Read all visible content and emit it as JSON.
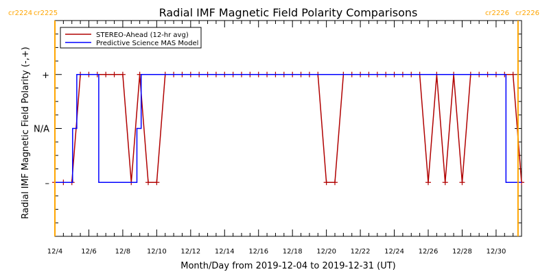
{
  "chart_data": {
    "type": "line",
    "title": "Radial IMF Magnetic Field Polarity Comparisons",
    "xlabel": "Month/Day from 2019-12-04 to 2019-12-31 (UT)",
    "ylabel": "Radial IMF Magnetic Field Polarity (-,+)",
    "x_ticks": [
      "12/4",
      "12/6",
      "12/8",
      "12/10",
      "12/12",
      "12/14",
      "12/16",
      "12/18",
      "12/20",
      "12/22",
      "12/24",
      "12/26",
      "12/28",
      "12/30"
    ],
    "y_ticks": [
      "+",
      "N/A",
      "–"
    ],
    "y_tick_values": [
      1,
      0,
      -1
    ],
    "xlim": [
      "2019-12-04",
      "2019-12-31T12:00"
    ],
    "ylim": [
      -2,
      2
    ],
    "carrington": {
      "left_labels": [
        "cr2224",
        "cr2225"
      ],
      "right_labels": [
        "cr2226",
        "cr2226"
      ],
      "boundaries": [
        "2019-12-04",
        "2019-12-31T07:00"
      ],
      "color": "#ffa500"
    },
    "legend": {
      "position": "top-left"
    },
    "series": [
      {
        "name": "STEREO-Ahead (12-hr avg)",
        "color": "#b00000",
        "markers": "plus",
        "x": [
          "2019-12-04",
          "2019-12-04T12:00",
          "2019-12-05",
          "2019-12-05T12:00",
          "2019-12-06",
          "2019-12-06T12:00",
          "2019-12-07",
          "2019-12-07T12:00",
          "2019-12-08",
          "2019-12-08T12:00",
          "2019-12-09",
          "2019-12-09T12:00",
          "2019-12-10",
          "2019-12-10T12:00",
          "2019-12-11",
          "2019-12-11T12:00",
          "2019-12-12",
          "2019-12-12T12:00",
          "2019-12-13",
          "2019-12-13T12:00",
          "2019-12-14",
          "2019-12-14T12:00",
          "2019-12-15",
          "2019-12-15T12:00",
          "2019-12-16",
          "2019-12-16T12:00",
          "2019-12-17",
          "2019-12-17T12:00",
          "2019-12-18",
          "2019-12-18T12:00",
          "2019-12-19",
          "2019-12-19T12:00",
          "2019-12-20",
          "2019-12-20T12:00",
          "2019-12-21",
          "2019-12-21T12:00",
          "2019-12-22",
          "2019-12-22T12:00",
          "2019-12-23",
          "2019-12-23T12:00",
          "2019-12-24",
          "2019-12-24T12:00",
          "2019-12-25",
          "2019-12-25T12:00",
          "2019-12-26",
          "2019-12-26T12:00",
          "2019-12-27",
          "2019-12-27T12:00",
          "2019-12-28",
          "2019-12-28T12:00",
          "2019-12-29",
          "2019-12-29T12:00",
          "2019-12-30",
          "2019-12-30T12:00",
          "2019-12-31",
          "2019-12-31T12:00"
        ],
        "y": [
          -1,
          -1,
          -1,
          1,
          1,
          1,
          1,
          1,
          1,
          -1,
          1,
          -1,
          -1,
          1,
          1,
          1,
          1,
          1,
          1,
          1,
          1,
          1,
          1,
          1,
          1,
          1,
          1,
          1,
          1,
          1,
          1,
          1,
          -1,
          -1,
          1,
          1,
          1,
          1,
          1,
          1,
          1,
          1,
          1,
          1,
          -1,
          1,
          -1,
          1,
          -1,
          1,
          1,
          1,
          1,
          1,
          1,
          -1
        ]
      },
      {
        "name": "Predictive Science MAS Model",
        "color": "#0000ff",
        "markers": "none",
        "x": [
          "2019-12-04",
          "2019-12-05T01:00",
          "2019-12-05T01:00",
          "2019-12-05T07:00",
          "2019-12-05T07:00",
          "2019-12-06T14:00",
          "2019-12-06T14:00",
          "2019-12-08T20:00",
          "2019-12-08T20:00",
          "2019-12-09T02:00",
          "2019-12-09T02:00",
          "2019-12-30T14:00",
          "2019-12-30T14:00",
          "2019-12-31T12:00"
        ],
        "y": [
          -1,
          -1,
          0,
          0,
          1,
          1,
          -1,
          -1,
          0,
          0,
          1,
          1,
          -1,
          -1
        ]
      }
    ]
  }
}
